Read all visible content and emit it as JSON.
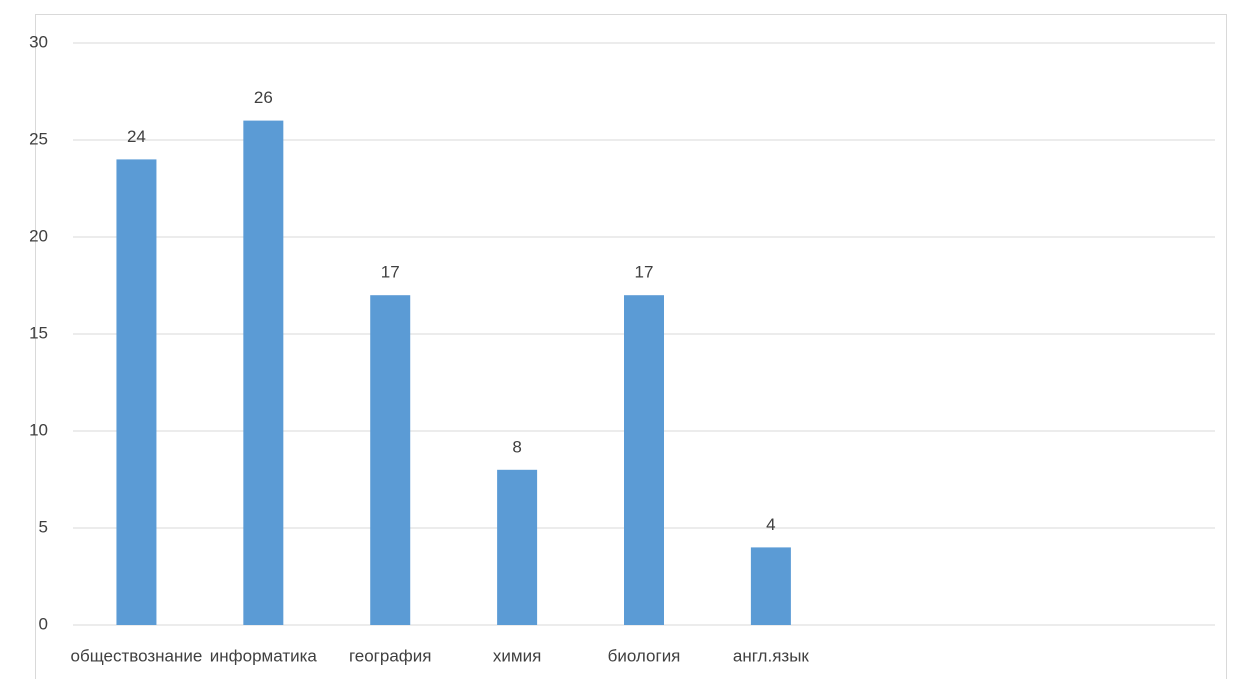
{
  "chart_data": {
    "type": "bar",
    "categories": [
      "обществознание",
      "информатика",
      "география",
      "химия",
      "биология",
      "англ.язык",
      null,
      null,
      null
    ],
    "values": [
      24,
      26,
      17,
      8,
      17,
      4,
      null,
      null,
      null
    ],
    "color": "#5b9bd5",
    "ylim": [
      0,
      30
    ],
    "yticks": [
      0,
      5,
      10,
      15,
      20,
      25,
      30
    ],
    "grid": true
  }
}
